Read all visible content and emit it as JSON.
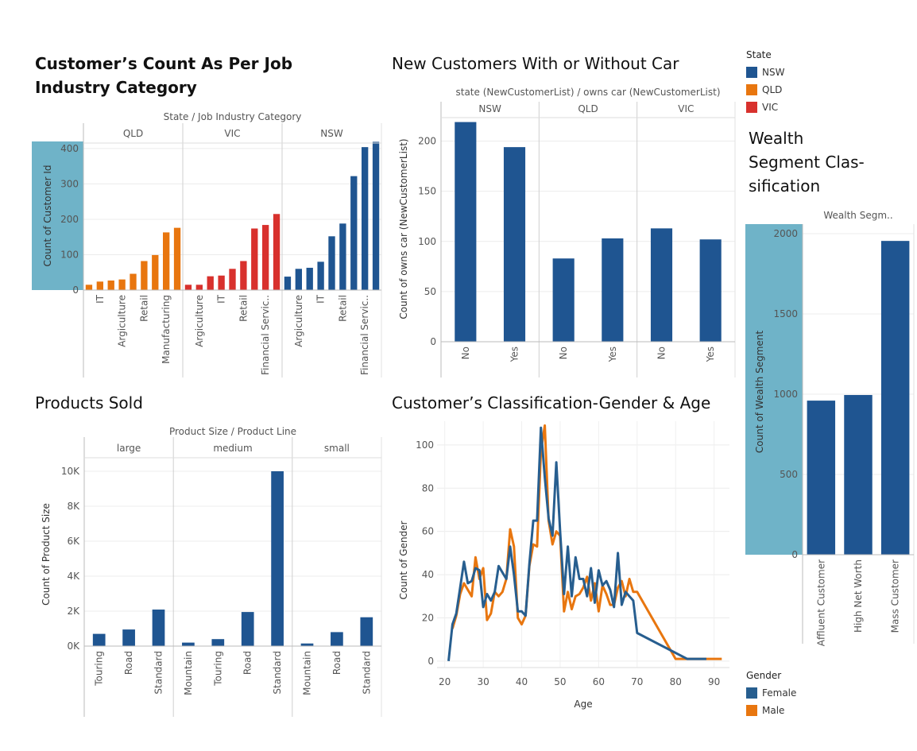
{
  "colors": {
    "NSW": "#1f5591",
    "QLD": "#e8760f",
    "VIC": "#d8312d",
    "Female": "#275e8f",
    "Male": "#e8760f",
    "highlight": "#6fb3c8"
  },
  "titles": {
    "industry": "Customer’s Count As Per Job Industry Category",
    "newcust": "New Customers With or Without Car",
    "wealth": "Wealth Segment Clas-sification",
    "products": "Products Sold",
    "gender": "Customer’s Classification-Gender & Age"
  },
  "legend_state": {
    "title": "State",
    "items": [
      "NSW",
      "QLD",
      "VIC"
    ]
  },
  "legend_gender": {
    "title": "Gender",
    "items": [
      "Female",
      "Male"
    ]
  },
  "chart_data": [
    {
      "id": "industry",
      "type": "bar",
      "title": "Customer’s Count As Per Job Industry Category",
      "header": "State / Job Industry Category",
      "ylabel": "Count of Customer Id",
      "ylim": [
        0,
        420
      ],
      "yticks": [
        0,
        100,
        200,
        300,
        400
      ],
      "panels": [
        {
          "name": "QLD",
          "series": "QLD",
          "values": [
            15,
            24,
            27,
            30,
            46,
            82,
            99,
            163,
            176
          ],
          "labels": [
            "",
            "IT",
            "",
            "Argiculture",
            "",
            "Retail",
            "",
            "Manufacturing",
            ""
          ]
        },
        {
          "name": "VIC",
          "series": "VIC",
          "values": [
            15,
            15,
            39,
            41,
            60,
            82,
            174,
            184,
            215
          ],
          "labels": [
            "",
            "Argiculture",
            "",
            "IT",
            "",
            "Retail",
            "",
            "Financial Servic..",
            ""
          ]
        },
        {
          "name": "NSW",
          "series": "NSW",
          "values": [
            38,
            60,
            63,
            80,
            152,
            188,
            322,
            404,
            419
          ],
          "labels": [
            "",
            "Argiculture",
            "",
            "IT",
            "",
            "Retail",
            "",
            "Financial Servic..",
            ""
          ]
        }
      ]
    },
    {
      "id": "newcust",
      "type": "bar",
      "title": "New Customers With or Without Car",
      "header": "state (NewCustomerList) / owns car (NewCustomerList)",
      "ylabel": "Count of owns car (NewCustomerList)",
      "ylim": [
        0,
        225
      ],
      "yticks": [
        0,
        50,
        100,
        150,
        200
      ],
      "panels": [
        {
          "name": "NSW",
          "series": "NSW",
          "values": [
            219,
            194
          ],
          "labels": [
            "No",
            "Yes"
          ]
        },
        {
          "name": "QLD",
          "series": "NSW",
          "values": [
            83,
            103
          ],
          "labels": [
            "No",
            "Yes"
          ]
        },
        {
          "name": "VIC",
          "series": "NSW",
          "values": [
            113,
            102
          ],
          "labels": [
            "No",
            "Yes"
          ]
        }
      ]
    },
    {
      "id": "wealth",
      "type": "bar",
      "title": "Wealth Segment Clas-sification",
      "header": "Wealth Segm..",
      "ylabel": "Count of Wealth Segment",
      "ylim": [
        0,
        2030
      ],
      "yticks": [
        0,
        500,
        1000,
        1500,
        2000
      ],
      "panels": [
        {
          "name": "",
          "series": "NSW",
          "values": [
            960,
            995,
            1955
          ],
          "labels": [
            "Affluent Customer",
            "High Net Worth",
            "Mass Customer"
          ]
        }
      ]
    },
    {
      "id": "products",
      "type": "bar",
      "title": "Products Sold",
      "header": "Product Size / Product Line",
      "ylabel": "Count of Product Size",
      "ylim": [
        0,
        10500
      ],
      "yticks": [
        0,
        2000,
        4000,
        6000,
        8000,
        10000
      ],
      "yticklabels": [
        "0K",
        "2K",
        "4K",
        "6K",
        "8K",
        "10K"
      ],
      "panels": [
        {
          "name": "large",
          "series": "NSW",
          "values": [
            700,
            950,
            2090
          ],
          "labels": [
            "Touring",
            "Road",
            "Standard"
          ]
        },
        {
          "name": "medium",
          "series": "NSW",
          "values": [
            200,
            400,
            1950,
            10000
          ],
          "labels": [
            "Mountain",
            "Touring",
            "Road",
            "Standard"
          ]
        },
        {
          "name": "small",
          "series": "NSW",
          "values": [
            150,
            800,
            1650
          ],
          "labels": [
            "Mountain",
            "Road",
            "Standard"
          ]
        }
      ]
    },
    {
      "id": "gender",
      "type": "line",
      "title": "Customer’s Classification-Gender & Age",
      "xlabel": "Age",
      "ylabel": "Count of Gender",
      "xlim": [
        18,
        94
      ],
      "ylim": [
        -3,
        111
      ],
      "xticks": [
        20,
        30,
        40,
        50,
        60,
        70,
        80,
        90
      ],
      "yticks": [
        0,
        20,
        40,
        60,
        80,
        100
      ],
      "series": [
        {
          "name": "Female",
          "x": [
            21,
            22,
            23,
            24,
            25,
            26,
            27,
            28,
            29,
            30,
            31,
            32,
            33,
            34,
            35,
            36,
            37,
            38,
            39,
            40,
            41,
            42,
            43,
            44,
            45,
            46,
            47,
            48,
            49,
            50,
            51,
            52,
            53,
            54,
            55,
            56,
            57,
            58,
            59,
            60,
            61,
            62,
            63,
            64,
            65,
            66,
            67,
            68,
            69,
            70,
            83,
            88
          ],
          "y": [
            0,
            17,
            22,
            34,
            46,
            36,
            37,
            43,
            42,
            25,
            31,
            28,
            32,
            44,
            41,
            38,
            53,
            40,
            23,
            23,
            21,
            45,
            65,
            65,
            108,
            85,
            66,
            58,
            92,
            60,
            31,
            53,
            30,
            48,
            38,
            38,
            30,
            43,
            27,
            42,
            35,
            37,
            33,
            25,
            50,
            26,
            32,
            30,
            28,
            13,
            1,
            1
          ]
        },
        {
          "name": "Male",
          "x": [
            22,
            23,
            24,
            25,
            26,
            27,
            28,
            29,
            30,
            31,
            32,
            33,
            34,
            35,
            36,
            37,
            38,
            39,
            40,
            41,
            42,
            43,
            44,
            45,
            46,
            47,
            48,
            49,
            50,
            51,
            52,
            53,
            54,
            55,
            56,
            57,
            58,
            59,
            60,
            61,
            62,
            63,
            64,
            65,
            66,
            67,
            68,
            69,
            70,
            80,
            92
          ],
          "y": [
            15,
            21,
            31,
            36,
            33,
            30,
            48,
            38,
            43,
            19,
            22,
            32,
            30,
            32,
            38,
            61,
            53,
            20,
            17,
            21,
            44,
            54,
            53,
            97,
            109,
            65,
            54,
            60,
            58,
            23,
            32,
            24,
            30,
            31,
            34,
            39,
            28,
            36,
            23,
            35,
            31,
            26,
            26,
            34,
            37,
            30,
            38,
            32,
            32,
            1,
            1
          ]
        }
      ]
    }
  ]
}
